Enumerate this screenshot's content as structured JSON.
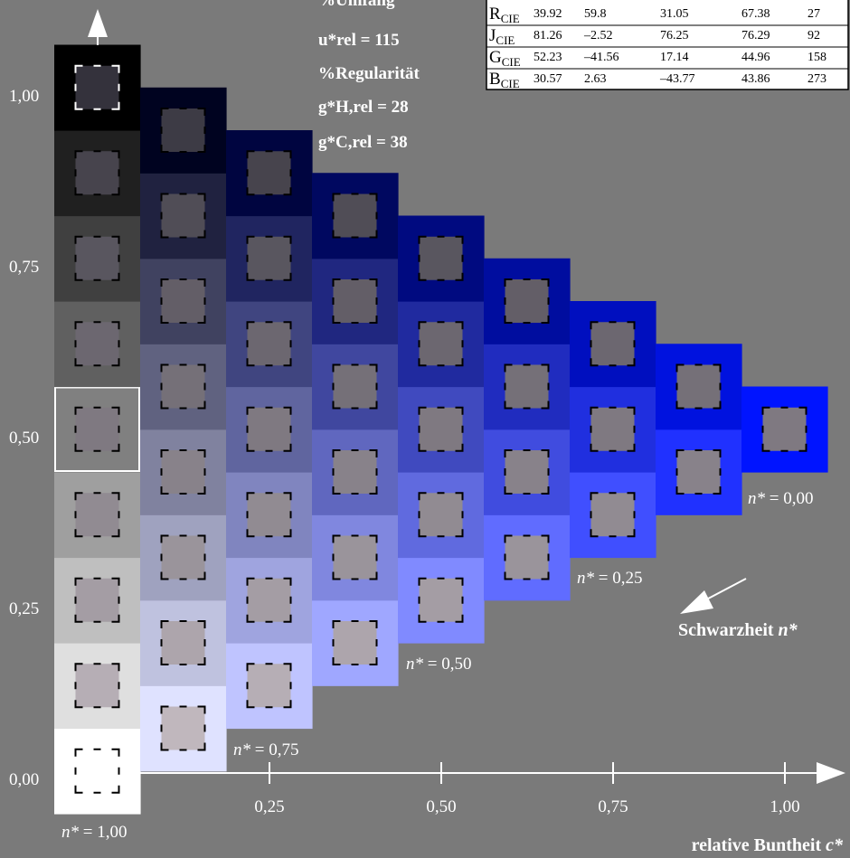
{
  "legend": {
    "umfang_heading": "%Umfang",
    "umfang_value": "u*rel = 115",
    "regularitaet_heading": "%Regularität",
    "gH_value": "g*H,rel = 28",
    "gC_value": "g*C,rel = 38"
  },
  "table": {
    "rows": [
      {
        "label": "RCIE",
        "letter": "R",
        "sub": "CIE",
        "v1": "39.92",
        "v2": "59.8",
        "v3": "31.05",
        "v4": "67.38",
        "v5": "27"
      },
      {
        "label": "JCIE",
        "letter": "J",
        "sub": "CIE",
        "v1": "81.26",
        "v2": "–2.52",
        "v3": "76.25",
        "v4": "76.29",
        "v5": "92"
      },
      {
        "label": "GCIE",
        "letter": "G",
        "sub": "CIE",
        "v1": "52.23",
        "v2": "–41.56",
        "v3": "17.14",
        "v4": "44.96",
        "v5": "158"
      },
      {
        "label": "BCIE",
        "letter": "B",
        "sub": "CIE",
        "v1": "30.57",
        "v2": "2.63",
        "v3": "–43.77",
        "v4": "43.86",
        "v5": "273"
      }
    ]
  },
  "y_axis": {
    "ticks": [
      {
        "value": 1.0,
        "label": "1,00"
      },
      {
        "value": 0.75,
        "label": "0,75"
      },
      {
        "value": 0.5,
        "label": "0,50"
      },
      {
        "value": 0.25,
        "label": "0,25"
      },
      {
        "value": 0.0,
        "label": "0,00"
      }
    ]
  },
  "x_axis": {
    "title": "relative Buntheit c*",
    "ticks": [
      {
        "value": 0.25,
        "label": "0,25"
      },
      {
        "value": 0.5,
        "label": "0,50"
      },
      {
        "value": 0.75,
        "label": "0,75"
      },
      {
        "value": 1.0,
        "label": "1,00"
      }
    ]
  },
  "blackness_labels": {
    "n100": "n* = 1,00",
    "n075": "n* = 0,75",
    "n050": "n* = 0,50",
    "n025": "n* = 0,25",
    "n000": "n* = 0,00",
    "arrow_label": "Schwarzheit n*"
  },
  "colors": {
    "background": "#7a7a7a",
    "hue_color": "#0014ff",
    "paper_white": "#ffffff",
    "black": "#000000",
    "inner_sample_light": "#c9c0c6",
    "inner_sample_dark": "#34323c"
  },
  "grid": {
    "steps": 8,
    "highlighted_patch": {
      "c": 0,
      "n": 4
    }
  }
}
